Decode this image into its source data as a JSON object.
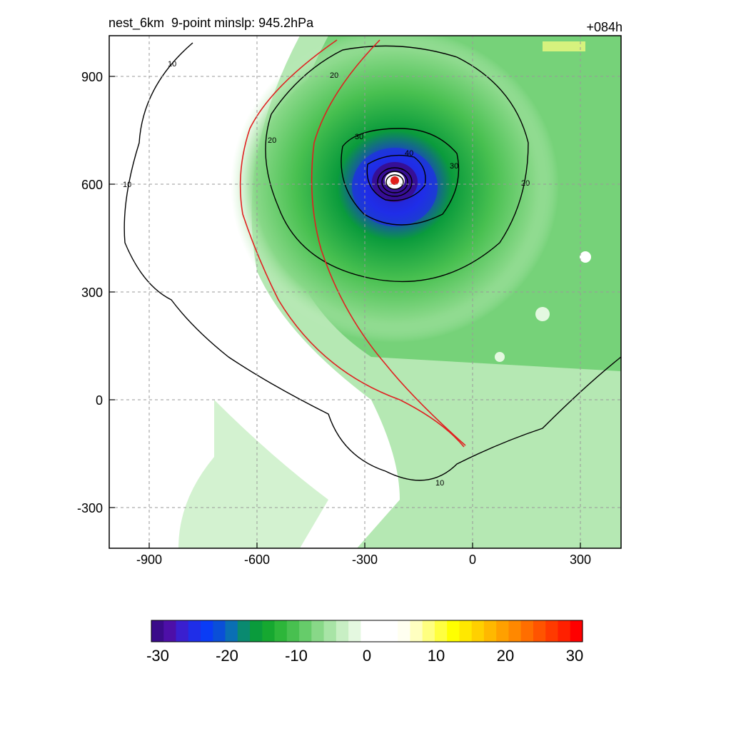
{
  "header": {
    "title": "nest_6km  9-point minslp: 945.2hPa",
    "forecast_hour": "+084h"
  },
  "map": {
    "x_ticks": [
      "-900",
      "-600",
      "-300",
      "0",
      "300"
    ],
    "y_ticks": [
      "900",
      "600",
      "300",
      "0",
      "-300"
    ],
    "contour_labels": [
      "10",
      "20",
      "30",
      "40"
    ],
    "storm_center_color": "#e0201b",
    "track_color": "#e02020",
    "grid_style": "dashed gray"
  },
  "colorbar": {
    "labels": [
      "-30",
      "-20",
      "-10",
      "0",
      "10",
      "20",
      "30"
    ],
    "colors": [
      "#3a0b8a",
      "#4d0fa8",
      "#3a1fcf",
      "#1f2ee8",
      "#0a3cf5",
      "#0a4fd8",
      "#0a6fb4",
      "#0a8a70",
      "#0a9b3c",
      "#16a830",
      "#2db63a",
      "#48c050",
      "#66cc6a",
      "#88d888",
      "#a8e4a6",
      "#c8efc4",
      "#e4f8e0",
      "#ffffff",
      "#ffffff",
      "#ffffff",
      "#fffff0",
      "#ffffc0",
      "#ffff80",
      "#ffff40",
      "#ffff00",
      "#ffe800",
      "#ffd000",
      "#ffb800",
      "#ffa000",
      "#ff8800",
      "#ff6e00",
      "#ff5400",
      "#ff3a00",
      "#ff2000",
      "#ff0000"
    ]
  }
}
